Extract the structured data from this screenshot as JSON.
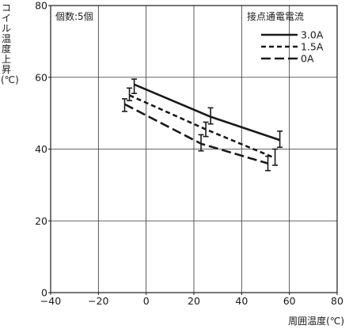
{
  "chart_data": {
    "type": "line",
    "xlabel": "周囲温度(℃)",
    "ylabel": "コイル温度上昇(℃)",
    "annotation": "個数:5個",
    "legend_title": "接点通電電流",
    "legend_position": "top-right",
    "xlim": [
      -40,
      80
    ],
    "ylim": [
      0,
      80
    ],
    "xticks": [
      "−40",
      "−20",
      "0",
      "20",
      "40",
      "60",
      "80"
    ],
    "yticks": [
      "0",
      "20",
      "40",
      "60",
      "80"
    ],
    "grid": true,
    "series": [
      {
        "name": "3.0A",
        "style": "solid",
        "points": [
          {
            "x": -5,
            "y": 58,
            "ylo": 55.5,
            "yhi": 59.5
          },
          {
            "x": 27,
            "y": 49,
            "ylo": 47,
            "yhi": 51.5
          },
          {
            "x": 56,
            "y": 42.5,
            "ylo": 40.5,
            "yhi": 45
          }
        ]
      },
      {
        "name": "1.5A",
        "style": "dashed",
        "points": [
          {
            "x": -7,
            "y": 55,
            "ylo": 53.5,
            "yhi": 57
          },
          {
            "x": 25,
            "y": 45.5,
            "ylo": 43.5,
            "yhi": 47.5
          },
          {
            "x": 54,
            "y": 37.5,
            "ylo": 35.5,
            "yhi": 40
          }
        ]
      },
      {
        "name": "0A",
        "style": "longdash",
        "points": [
          {
            "x": -9,
            "y": 52.5,
            "ylo": 50.5,
            "yhi": 54
          },
          {
            "x": 23,
            "y": 41.5,
            "ylo": 39.5,
            "yhi": 44
          },
          {
            "x": 51,
            "y": 36,
            "ylo": 34,
            "yhi": 38
          }
        ]
      }
    ]
  }
}
